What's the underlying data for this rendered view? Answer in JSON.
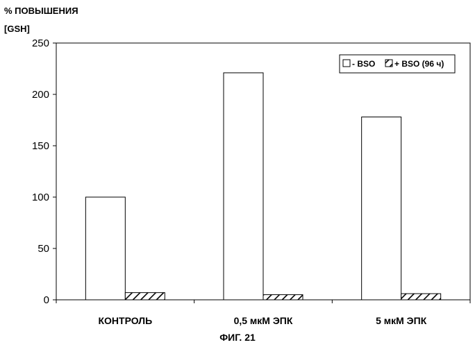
{
  "chart_data": {
    "type": "bar",
    "ylabel_lines": [
      "% ПОВЫШЕНИЯ",
      "[GSH]"
    ],
    "categories": [
      "КОНТРОЛЬ",
      "0,5 мкМ ЭПК",
      "5 мкМ ЭПК"
    ],
    "series": [
      {
        "name": "- BSO",
        "values": [
          100,
          221,
          178
        ],
        "pattern": "blank"
      },
      {
        "name": "+ BSO (96 ч)",
        "values": [
          7,
          5,
          6
        ],
        "pattern": "hatched"
      }
    ],
    "ylim": [
      0,
      250
    ],
    "yticks": [
      0,
      50,
      100,
      150,
      200,
      250
    ],
    "grid": false,
    "legend_position": "top-right",
    "caption": "ФИГ. 21"
  }
}
